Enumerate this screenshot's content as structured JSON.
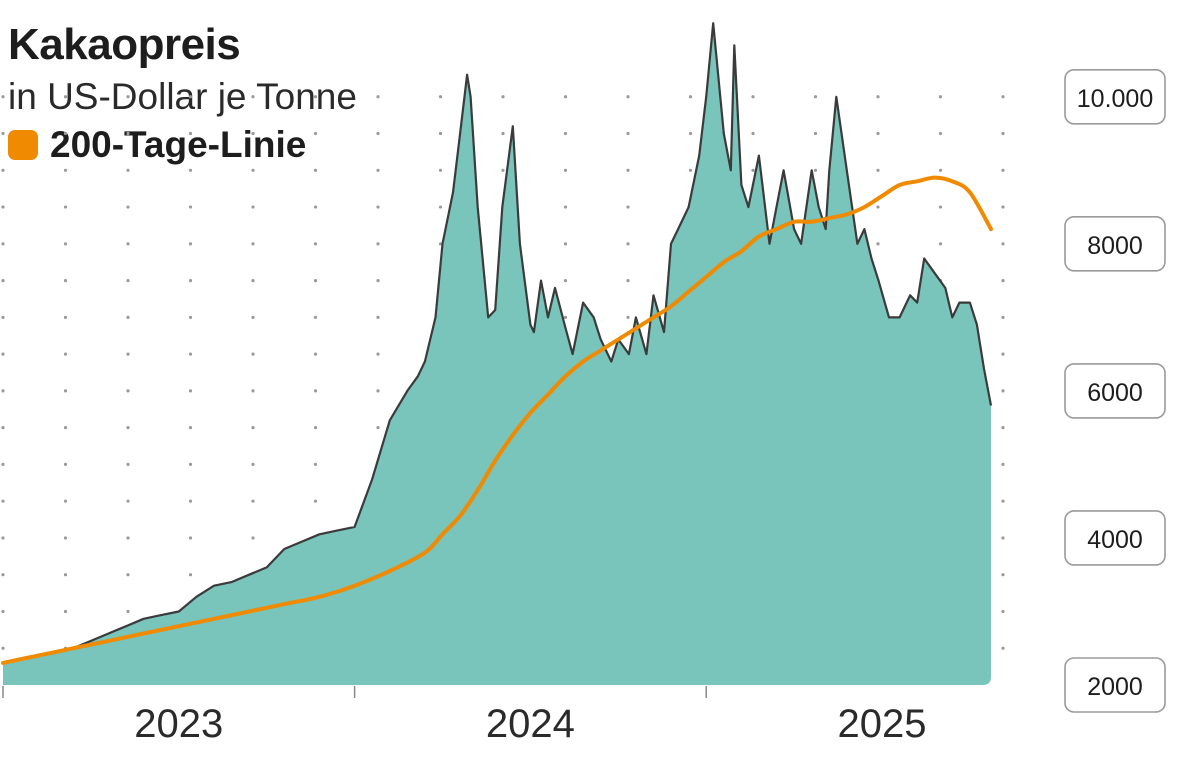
{
  "colors": {
    "area": "#79c4bb",
    "price_line": "#3b3b3b",
    "moving_average": "#f08a00",
    "grid_dots": "#9a9a9a",
    "label_border": "#9a9a9a"
  },
  "chart_data": {
    "type": "area",
    "title": "Kakaopreis",
    "subtitle": "in US-Dollar je Tonne",
    "legend": [
      {
        "label": "200-Tage-Linie",
        "color": "#f08a00"
      }
    ],
    "x_range": [
      2022.5,
      2025.31
    ],
    "x_ticks": [
      2022.5,
      2023.5,
      2024.5
    ],
    "x_tick_labels": [
      {
        "label": "2023",
        "at": 2023.0
      },
      {
        "label": "2024",
        "at": 2024.0
      },
      {
        "label": "2025",
        "at": 2025.0
      }
    ],
    "ylim": [
      2000,
      10500
    ],
    "y_gridlines": [
      2500,
      3000,
      3500,
      4000,
      4500,
      5000,
      5500,
      6000,
      6500,
      7000,
      7500,
      8000,
      8500,
      9000,
      9500,
      10000
    ],
    "y_tick_labels": [
      {
        "label": "10.000",
        "value": 10000
      },
      {
        "label": "8000",
        "value": 8000
      },
      {
        "label": "6000",
        "value": 6000
      },
      {
        "label": "4000",
        "value": 4000
      },
      {
        "label": "2000",
        "value": 2000
      }
    ],
    "series": [
      {
        "kind": "price",
        "x": [
          2022.5,
          2022.55,
          2022.6,
          2022.65,
          2022.7,
          2022.75,
          2022.8,
          2022.85,
          2022.9,
          2022.95,
          2023.0,
          2023.05,
          2023.1,
          2023.15,
          2023.2,
          2023.25,
          2023.3,
          2023.35,
          2023.4,
          2023.45,
          2023.5,
          2023.55,
          2023.6,
          2023.65,
          2023.68,
          2023.7,
          2023.73,
          2023.75,
          2023.78,
          2023.8,
          2023.82,
          2023.83,
          2023.85,
          2023.87,
          2023.88,
          2023.9,
          2023.92,
          2023.95,
          2023.97,
          2024.0,
          2024.01,
          2024.03,
          2024.05,
          2024.07,
          2024.1,
          2024.12,
          2024.15,
          2024.18,
          2024.2,
          2024.23,
          2024.25,
          2024.28,
          2024.3,
          2024.33,
          2024.35,
          2024.38,
          2024.4,
          2024.42,
          2024.45,
          2024.48,
          2024.5,
          2024.52,
          2024.55,
          2024.57,
          2024.58,
          2024.6,
          2024.62,
          2024.65,
          2024.68,
          2024.7,
          2024.72,
          2024.75,
          2024.77,
          2024.8,
          2024.82,
          2024.84,
          2024.85,
          2024.87,
          2024.9,
          2024.93,
          2024.95,
          2024.97,
          2024.99,
          2025.02,
          2025.05,
          2025.08,
          2025.1,
          2025.12,
          2025.15,
          2025.18,
          2025.2,
          2025.22,
          2025.25,
          2025.27,
          2025.29,
          2025.31
        ],
        "y": [
          2300,
          2350,
          2400,
          2450,
          2500,
          2600,
          2700,
          2800,
          2900,
          2950,
          3000,
          3200,
          3350,
          3400,
          3500,
          3600,
          3850,
          3950,
          4050,
          4100,
          4150,
          4800,
          5600,
          6000,
          6200,
          6400,
          7000,
          8000,
          8700,
          9500,
          10300,
          10000,
          8500,
          7500,
          7000,
          7100,
          8500,
          9600,
          8000,
          6900,
          6800,
          7500,
          7000,
          7400,
          6850,
          6500,
          7200,
          7000,
          6700,
          6400,
          6700,
          6500,
          7000,
          6500,
          7300,
          6800,
          8000,
          8200,
          8500,
          9200,
          10000,
          11000,
          9500,
          9000,
          10700,
          8800,
          8500,
          9200,
          8000,
          8500,
          9000,
          8200,
          8000,
          9000,
          8500,
          8200,
          9000,
          10000,
          9000,
          8000,
          8200,
          7800,
          7500,
          7000,
          7000,
          7300,
          7200,
          7800,
          7600,
          7400,
          7000,
          7200,
          7200,
          6900,
          6300,
          5800
        ]
      },
      {
        "kind": "moving_average",
        "name": "200-Tage-Linie",
        "x": [
          2022.5,
          2022.6,
          2022.7,
          2022.8,
          2022.9,
          2023.0,
          2023.1,
          2023.2,
          2023.3,
          2023.4,
          2023.5,
          2023.6,
          2023.7,
          2023.75,
          2023.8,
          2023.85,
          2023.9,
          2023.95,
          2024.0,
          2024.05,
          2024.1,
          2024.15,
          2024.2,
          2024.25,
          2024.3,
          2024.35,
          2024.4,
          2024.45,
          2024.5,
          2024.55,
          2024.6,
          2024.65,
          2024.7,
          2024.75,
          2024.8,
          2024.85,
          2024.9,
          2024.95,
          2025.0,
          2025.05,
          2025.1,
          2025.15,
          2025.2,
          2025.25,
          2025.31
        ],
        "y": [
          2300,
          2400,
          2500,
          2600,
          2700,
          2800,
          2900,
          3000,
          3100,
          3200,
          3350,
          3550,
          3800,
          4050,
          4300,
          4650,
          5050,
          5400,
          5700,
          5950,
          6200,
          6400,
          6550,
          6700,
          6850,
          7000,
          7150,
          7350,
          7550,
          7750,
          7900,
          8100,
          8200,
          8300,
          8300,
          8350,
          8400,
          8500,
          8650,
          8800,
          8850,
          8900,
          8850,
          8700,
          8200
        ]
      }
    ]
  }
}
